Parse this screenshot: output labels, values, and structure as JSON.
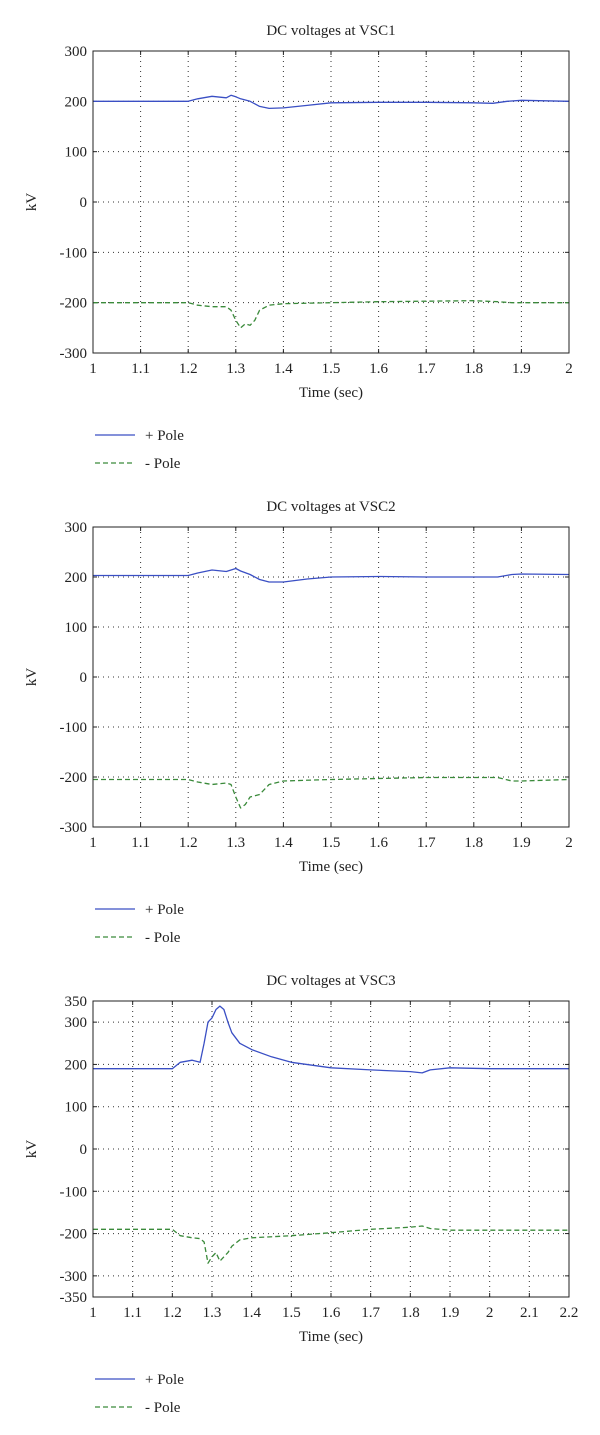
{
  "chart_data": [
    {
      "type": "line",
      "title": "DC voltages at VSC1",
      "xlabel": "Time (sec)",
      "ylabel": "kV",
      "xlim": [
        1,
        2
      ],
      "ylim": [
        -300,
        300
      ],
      "xticks": [
        1,
        1.1,
        1.2,
        1.3,
        1.4,
        1.5,
        1.6,
        1.7,
        1.8,
        1.9,
        2
      ],
      "yticks": [
        300,
        200,
        100,
        0,
        -100,
        -200,
        -300
      ],
      "grid": true,
      "legend_position": "bottom-left, below plot",
      "series": [
        {
          "name": "+ Pole",
          "color": "#3a4fc4",
          "style": "solid",
          "x": [
            1.0,
            1.2,
            1.22,
            1.25,
            1.28,
            1.29,
            1.3,
            1.31,
            1.33,
            1.35,
            1.37,
            1.4,
            1.45,
            1.5,
            1.6,
            1.7,
            1.8,
            1.84,
            1.87,
            1.9,
            1.95,
            2.0
          ],
          "y": [
            200,
            200,
            205,
            210,
            207,
            212,
            209,
            205,
            200,
            190,
            186,
            187,
            192,
            197,
            198,
            198,
            197,
            196,
            200,
            202,
            201,
            200
          ]
        },
        {
          "name": "- Pole",
          "color": "#3a8a3a",
          "style": "dashed",
          "x": [
            1.0,
            1.2,
            1.22,
            1.25,
            1.28,
            1.29,
            1.3,
            1.31,
            1.32,
            1.33,
            1.34,
            1.35,
            1.37,
            1.4,
            1.5,
            1.6,
            1.7,
            1.8,
            1.85,
            1.88,
            1.9,
            2.0
          ],
          "y": [
            -200,
            -200,
            -205,
            -208,
            -208,
            -215,
            -235,
            -250,
            -242,
            -245,
            -235,
            -215,
            -205,
            -202,
            -200,
            -198,
            -197,
            -196,
            -198,
            -200,
            -200,
            -200
          ]
        }
      ]
    },
    {
      "type": "line",
      "title": "DC voltages at VSC2",
      "xlabel": "Time (sec)",
      "ylabel": "kV",
      "xlim": [
        1,
        2
      ],
      "ylim": [
        -300,
        300
      ],
      "xticks": [
        1,
        1.1,
        1.2,
        1.3,
        1.4,
        1.5,
        1.6,
        1.7,
        1.8,
        1.9,
        2
      ],
      "yticks": [
        300,
        200,
        100,
        0,
        -100,
        -200,
        -300
      ],
      "grid": true,
      "legend_position": "bottom-left, below plot",
      "series": [
        {
          "name": "+ Pole",
          "color": "#3a4fc4",
          "style": "solid",
          "x": [
            1.0,
            1.2,
            1.22,
            1.25,
            1.28,
            1.3,
            1.31,
            1.33,
            1.35,
            1.37,
            1.4,
            1.45,
            1.5,
            1.6,
            1.7,
            1.8,
            1.85,
            1.88,
            1.9,
            2.0
          ],
          "y": [
            203,
            203,
            208,
            214,
            211,
            217,
            212,
            205,
            195,
            190,
            190,
            196,
            200,
            201,
            200,
            200,
            200,
            205,
            206,
            205
          ]
        },
        {
          "name": "- Pole",
          "color": "#3a8a3a",
          "style": "dashed",
          "x": [
            1.0,
            1.2,
            1.22,
            1.25,
            1.28,
            1.29,
            1.3,
            1.31,
            1.32,
            1.33,
            1.35,
            1.37,
            1.4,
            1.5,
            1.6,
            1.7,
            1.8,
            1.85,
            1.88,
            1.9,
            2.0
          ],
          "y": [
            -205,
            -205,
            -210,
            -215,
            -212,
            -215,
            -240,
            -262,
            -255,
            -240,
            -235,
            -215,
            -208,
            -205,
            -203,
            -201,
            -201,
            -201,
            -208,
            -208,
            -205
          ]
        }
      ]
    },
    {
      "type": "line",
      "title": "DC voltages at VSC3",
      "xlabel": "Time (sec)",
      "ylabel": "kV",
      "xlim": [
        1,
        2.2
      ],
      "ylim": [
        -350,
        350
      ],
      "xticks": [
        1,
        1.1,
        1.2,
        1.3,
        1.4,
        1.5,
        1.6,
        1.7,
        1.8,
        1.9,
        2,
        2.1,
        2.2
      ],
      "yticks": [
        350,
        300,
        200,
        100,
        0,
        -100,
        -200,
        -300,
        -350
      ],
      "grid": true,
      "legend_position": "bottom-left, below plot",
      "series": [
        {
          "name": "+ Pole",
          "color": "#3a4fc4",
          "style": "solid",
          "x": [
            1.0,
            1.2,
            1.22,
            1.25,
            1.27,
            1.28,
            1.29,
            1.3,
            1.31,
            1.32,
            1.33,
            1.34,
            1.35,
            1.37,
            1.4,
            1.45,
            1.5,
            1.6,
            1.7,
            1.8,
            1.83,
            1.85,
            1.9,
            2.0,
            2.2
          ],
          "y": [
            190,
            190,
            205,
            210,
            205,
            250,
            300,
            310,
            330,
            338,
            330,
            300,
            275,
            250,
            235,
            218,
            205,
            192,
            187,
            183,
            180,
            187,
            192,
            190,
            190
          ]
        },
        {
          "name": "- Pole",
          "color": "#3a8a3a",
          "style": "dashed",
          "x": [
            1.0,
            1.2,
            1.22,
            1.25,
            1.27,
            1.28,
            1.29,
            1.3,
            1.31,
            1.32,
            1.33,
            1.34,
            1.35,
            1.37,
            1.4,
            1.5,
            1.6,
            1.7,
            1.8,
            1.83,
            1.85,
            1.9,
            2.0,
            2.2
          ],
          "y": [
            -190,
            -190,
            -205,
            -210,
            -212,
            -220,
            -270,
            -255,
            -245,
            -265,
            -255,
            -245,
            -230,
            -215,
            -210,
            -205,
            -198,
            -190,
            -185,
            -182,
            -188,
            -192,
            -192,
            -192
          ]
        }
      ]
    }
  ]
}
